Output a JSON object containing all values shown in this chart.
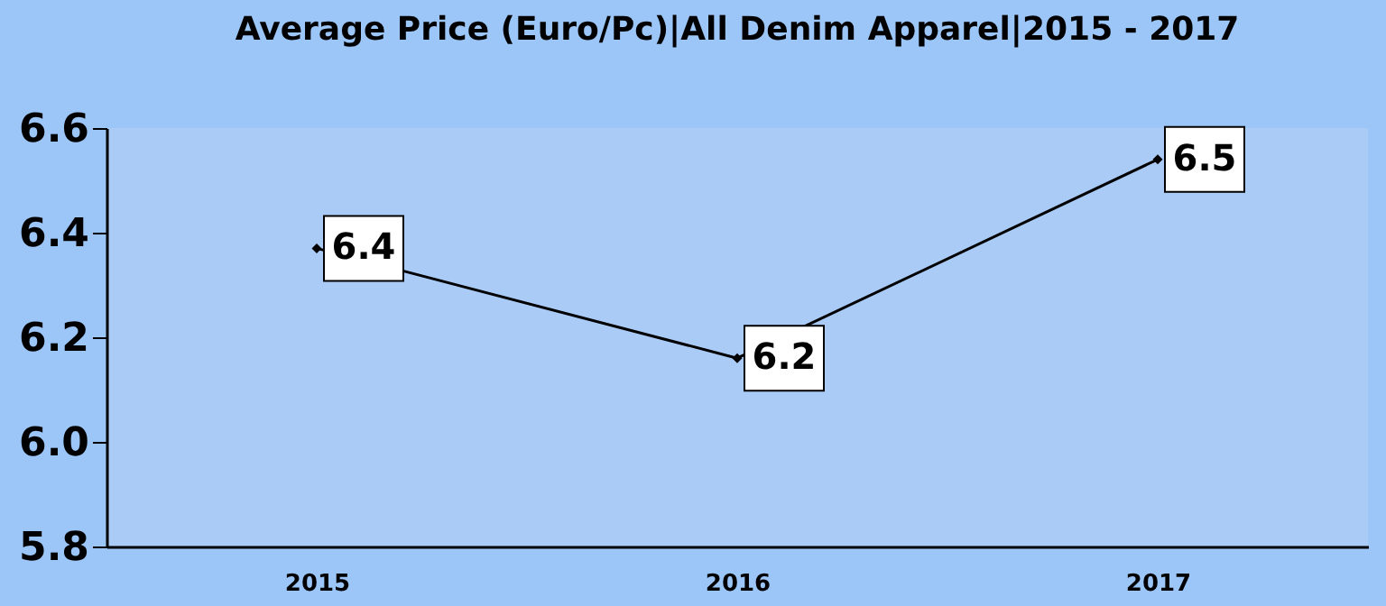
{
  "chart_data": {
    "type": "line",
    "title": "Average Price (Euro/Pc)|All Denim Apparel|2015 - 2017",
    "categories": [
      "2015",
      "2016",
      "2017"
    ],
    "series": [
      {
        "color": "#000000",
        "values": [
          6.37,
          6.16,
          6.54
        ],
        "value_labels": [
          "6.4",
          "6.2",
          "6.5"
        ]
      }
    ],
    "ylim": [
      5.8,
      6.6
    ],
    "yticks": [
      5.8,
      {
        "value": 6,
        "label": "6.0"
      },
      6.2,
      6.4,
      6.6
    ],
    "grid": false,
    "marker": "diamond",
    "line_style": "solid"
  }
}
